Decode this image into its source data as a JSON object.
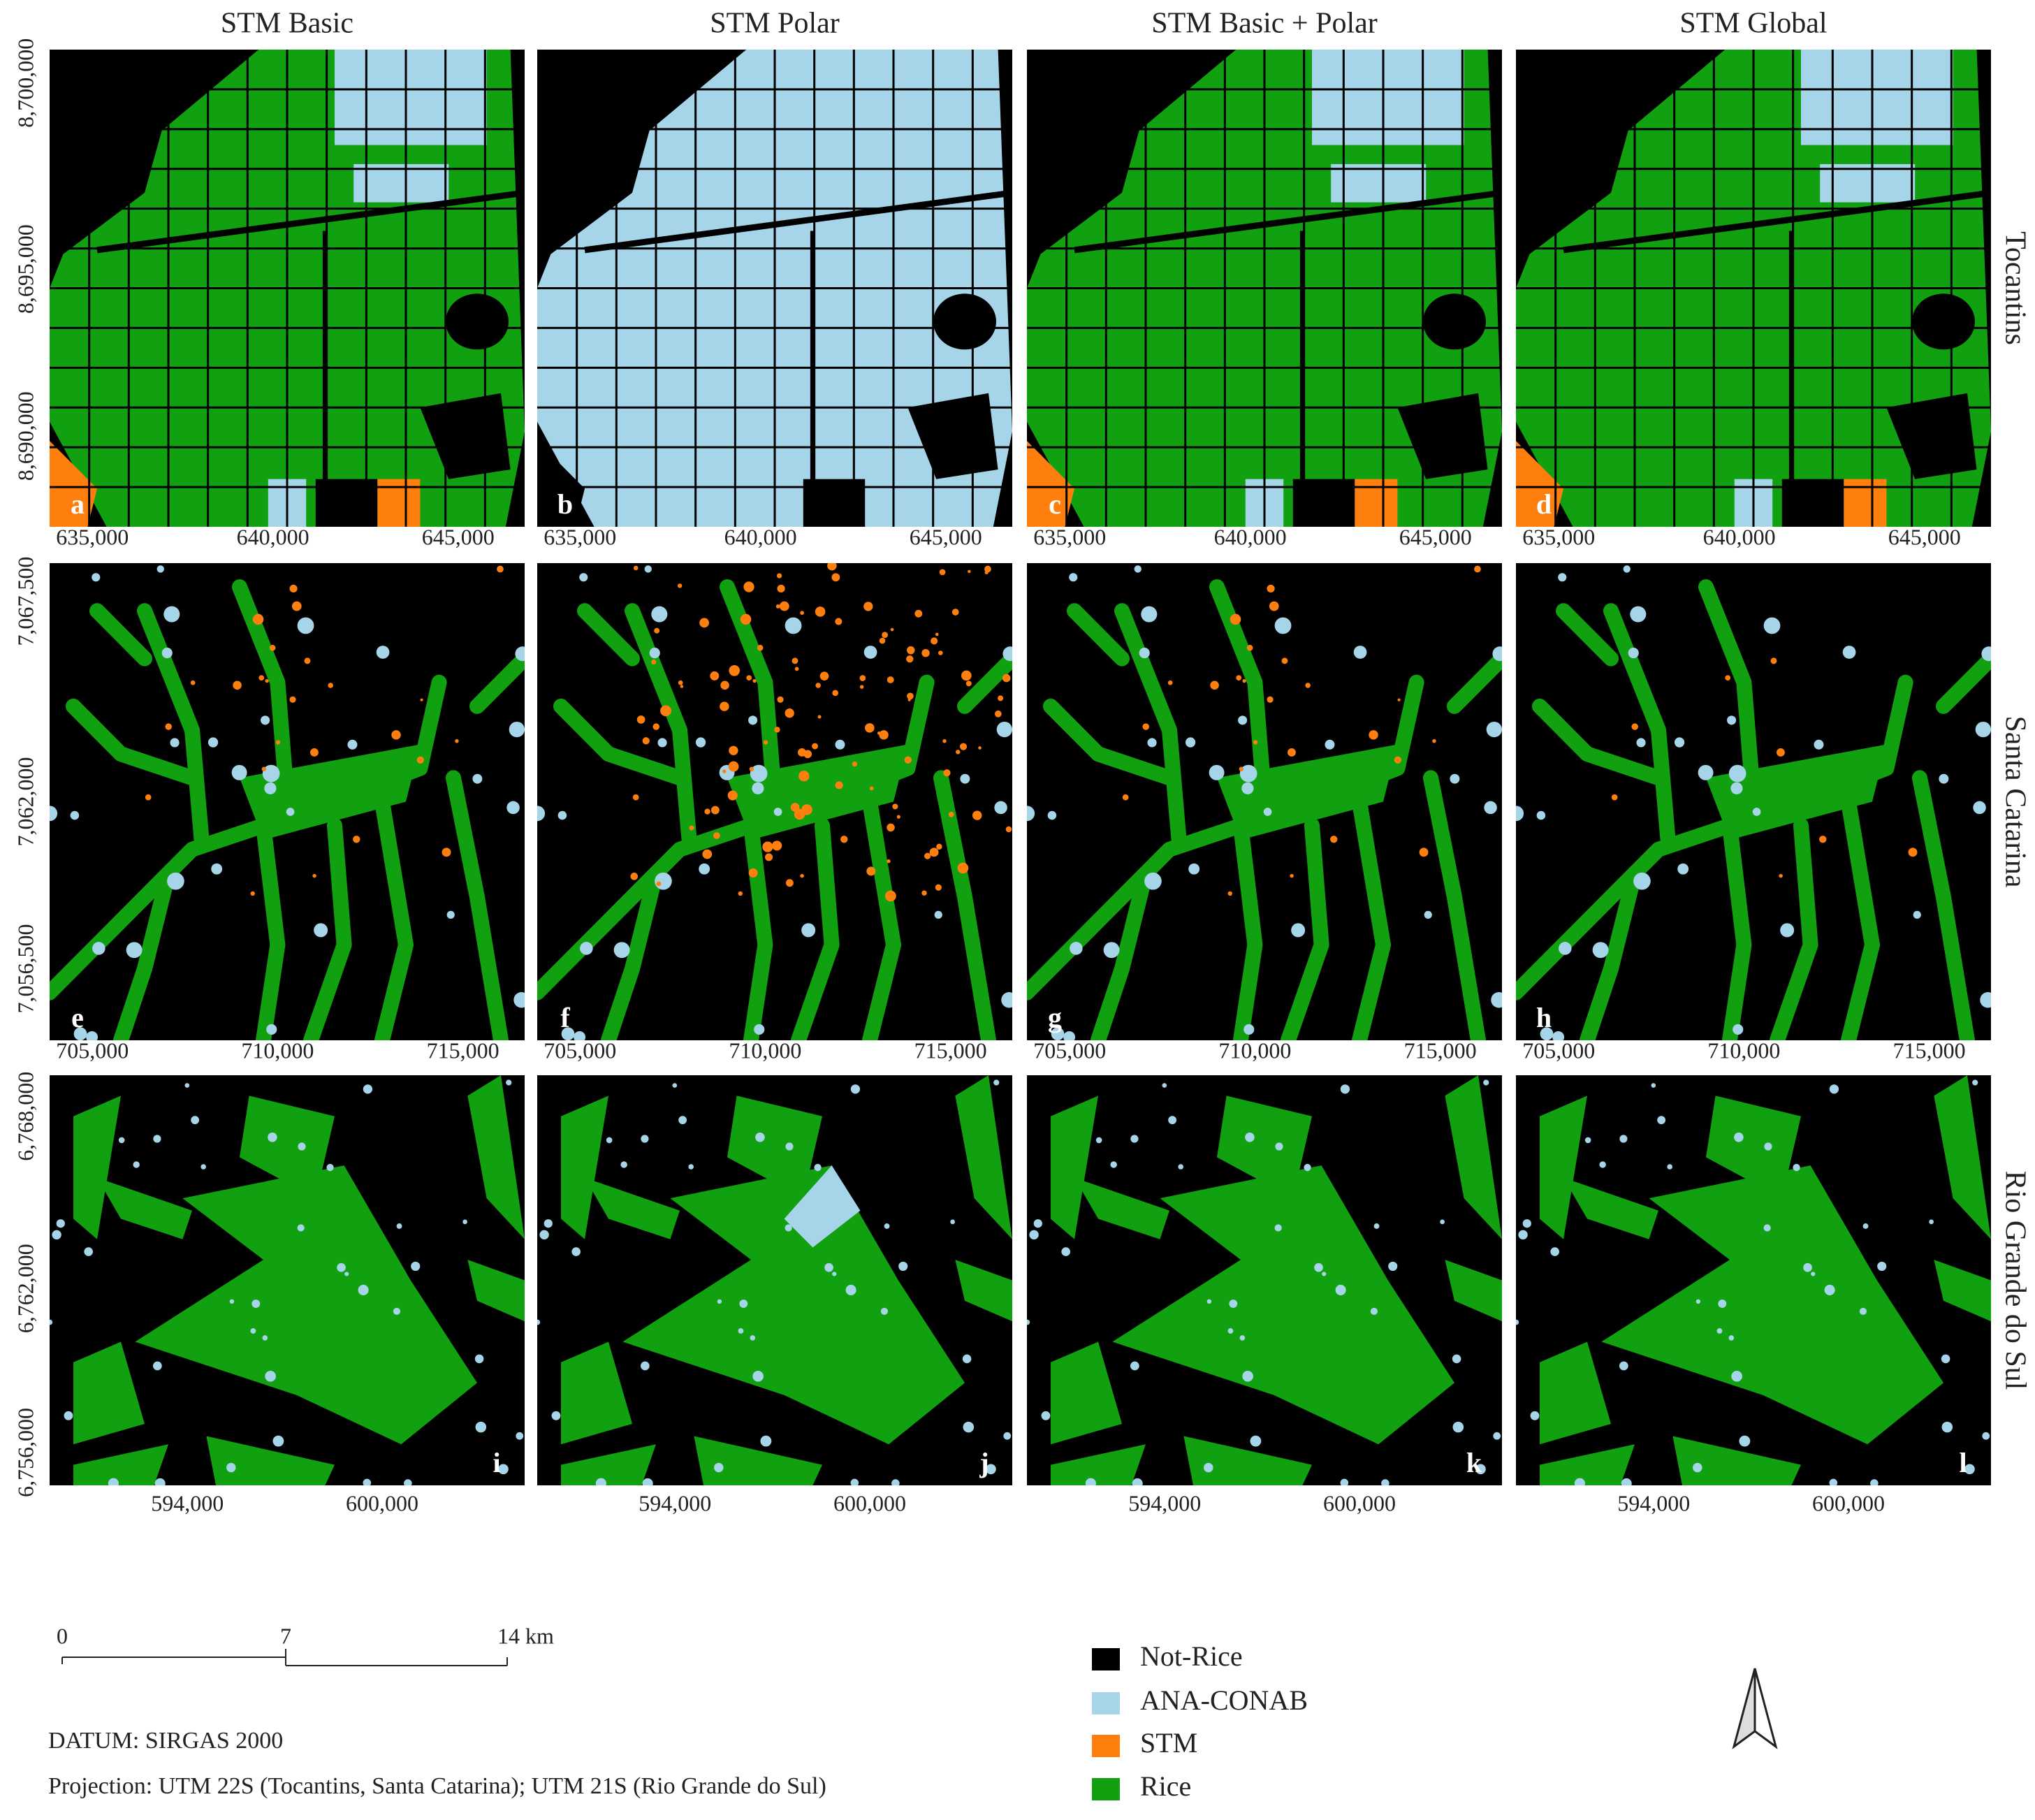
{
  "columns": [
    "STM Basic",
    "STM Polar",
    "STM Basic + Polar",
    "STM Global"
  ],
  "rows": [
    {
      "label": "Tocantins",
      "x_ticks": [
        "635,000",
        "640,000",
        "645,000"
      ],
      "y_ticks": [
        "8,700,000",
        "8,695,000",
        "8,690,000"
      ],
      "panels": [
        "a",
        "b",
        "c",
        "d"
      ]
    },
    {
      "label": "Santa Catarina",
      "x_ticks": [
        "705,000",
        "710,000",
        "715,000"
      ],
      "y_ticks": [
        "7,067,500",
        "7,062,000",
        "7,056,500"
      ],
      "panels": [
        "e",
        "f",
        "g",
        "h"
      ]
    },
    {
      "label": "Rio Grande do Sul",
      "x_ticks": [
        "594,000",
        "600,000"
      ],
      "y_ticks": [
        "6,768,000",
        "6,762,000",
        "6,756,000"
      ],
      "panels": [
        "i",
        "j",
        "k",
        "l"
      ]
    }
  ],
  "scale_bar": {
    "ticks": [
      "0",
      "7"
    ],
    "end": "14 km"
  },
  "legend": [
    {
      "label": "Not-Rice",
      "color": "#000000"
    },
    {
      "label": "ANA-CONAB",
      "color": "#a6d4e8"
    },
    {
      "label": "STM",
      "color": "#ff7f0e"
    },
    {
      "label": "Rice",
      "color": "#10a010"
    }
  ],
  "datum": "DATUM: SIRGAS 2000",
  "projection": "Projection: UTM 22S (Tocantins, Santa Catarina); UTM 21S (Rio Grande do Sul)"
}
